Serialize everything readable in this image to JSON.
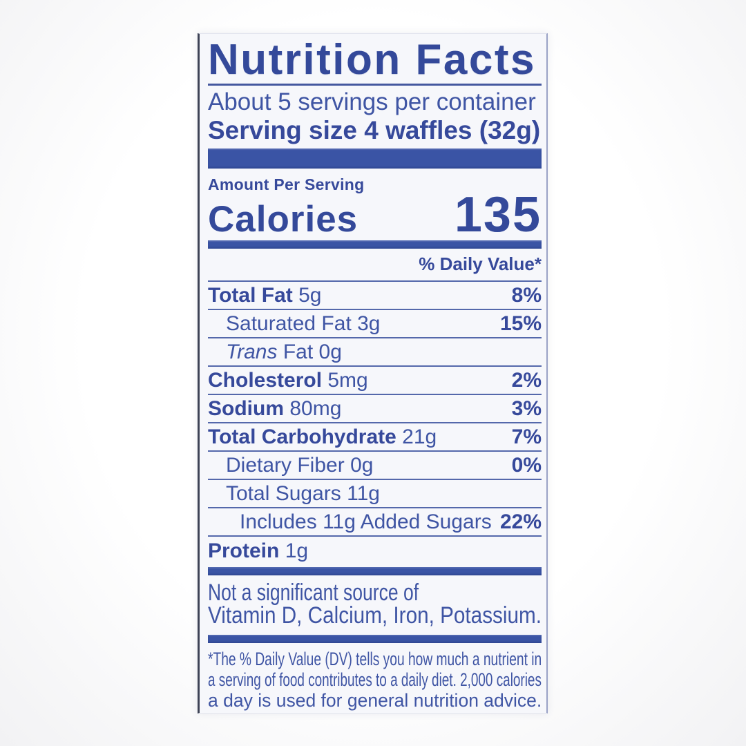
{
  "panel": {
    "title": "Nutrition Facts",
    "servings_per_container": "About 5 servings per container",
    "serving_size": "Serving size 4 waffles (32g)",
    "amount_per_serving": "Amount Per Serving",
    "calories": {
      "label": "Calories",
      "value": "135"
    },
    "dv_header": "% Daily Value*",
    "rows": [
      {
        "name": "Total Fat",
        "amount": "5g",
        "dv": "8%"
      },
      {
        "name": "Saturated Fat",
        "amount": "3g",
        "dv": "15%"
      },
      {
        "name_italic": "Trans",
        "name": "Fat",
        "amount": "0g",
        "dv": ""
      },
      {
        "name": "Cholesterol",
        "amount": "5mg",
        "dv": "2%"
      },
      {
        "name": "Sodium",
        "amount": "80mg",
        "dv": "3%"
      },
      {
        "name": "Total Carbohydrate",
        "amount": "21g",
        "dv": "7%"
      },
      {
        "name": "Dietary Fiber",
        "amount": "0g",
        "dv": "0%"
      },
      {
        "name": "Total Sugars",
        "amount": "11g",
        "dv": ""
      },
      {
        "name": "Includes 11g Added Sugars",
        "amount": "",
        "dv": "22%"
      },
      {
        "name": "Protein",
        "amount": "1g",
        "dv": ""
      }
    ],
    "not_significant": [
      "Not a significant source of",
      "Vitamin D, Calcium, Iron, Potassium."
    ],
    "footnote": [
      "*The % Daily Value (DV) tells you how much a nutrient in",
      "a serving of food contributes to a daily diet. 2,000 calories",
      "a day is used for general nutrition advice."
    ]
  },
  "colors": {
    "ink_blue": "#3f55a4",
    "ink_blue_bold": "#34499a",
    "bar_blue": "#3a54a5",
    "rule_blue": "#5468ab",
    "paper": "#f6f7fb",
    "page_background": "#ffffff"
  }
}
